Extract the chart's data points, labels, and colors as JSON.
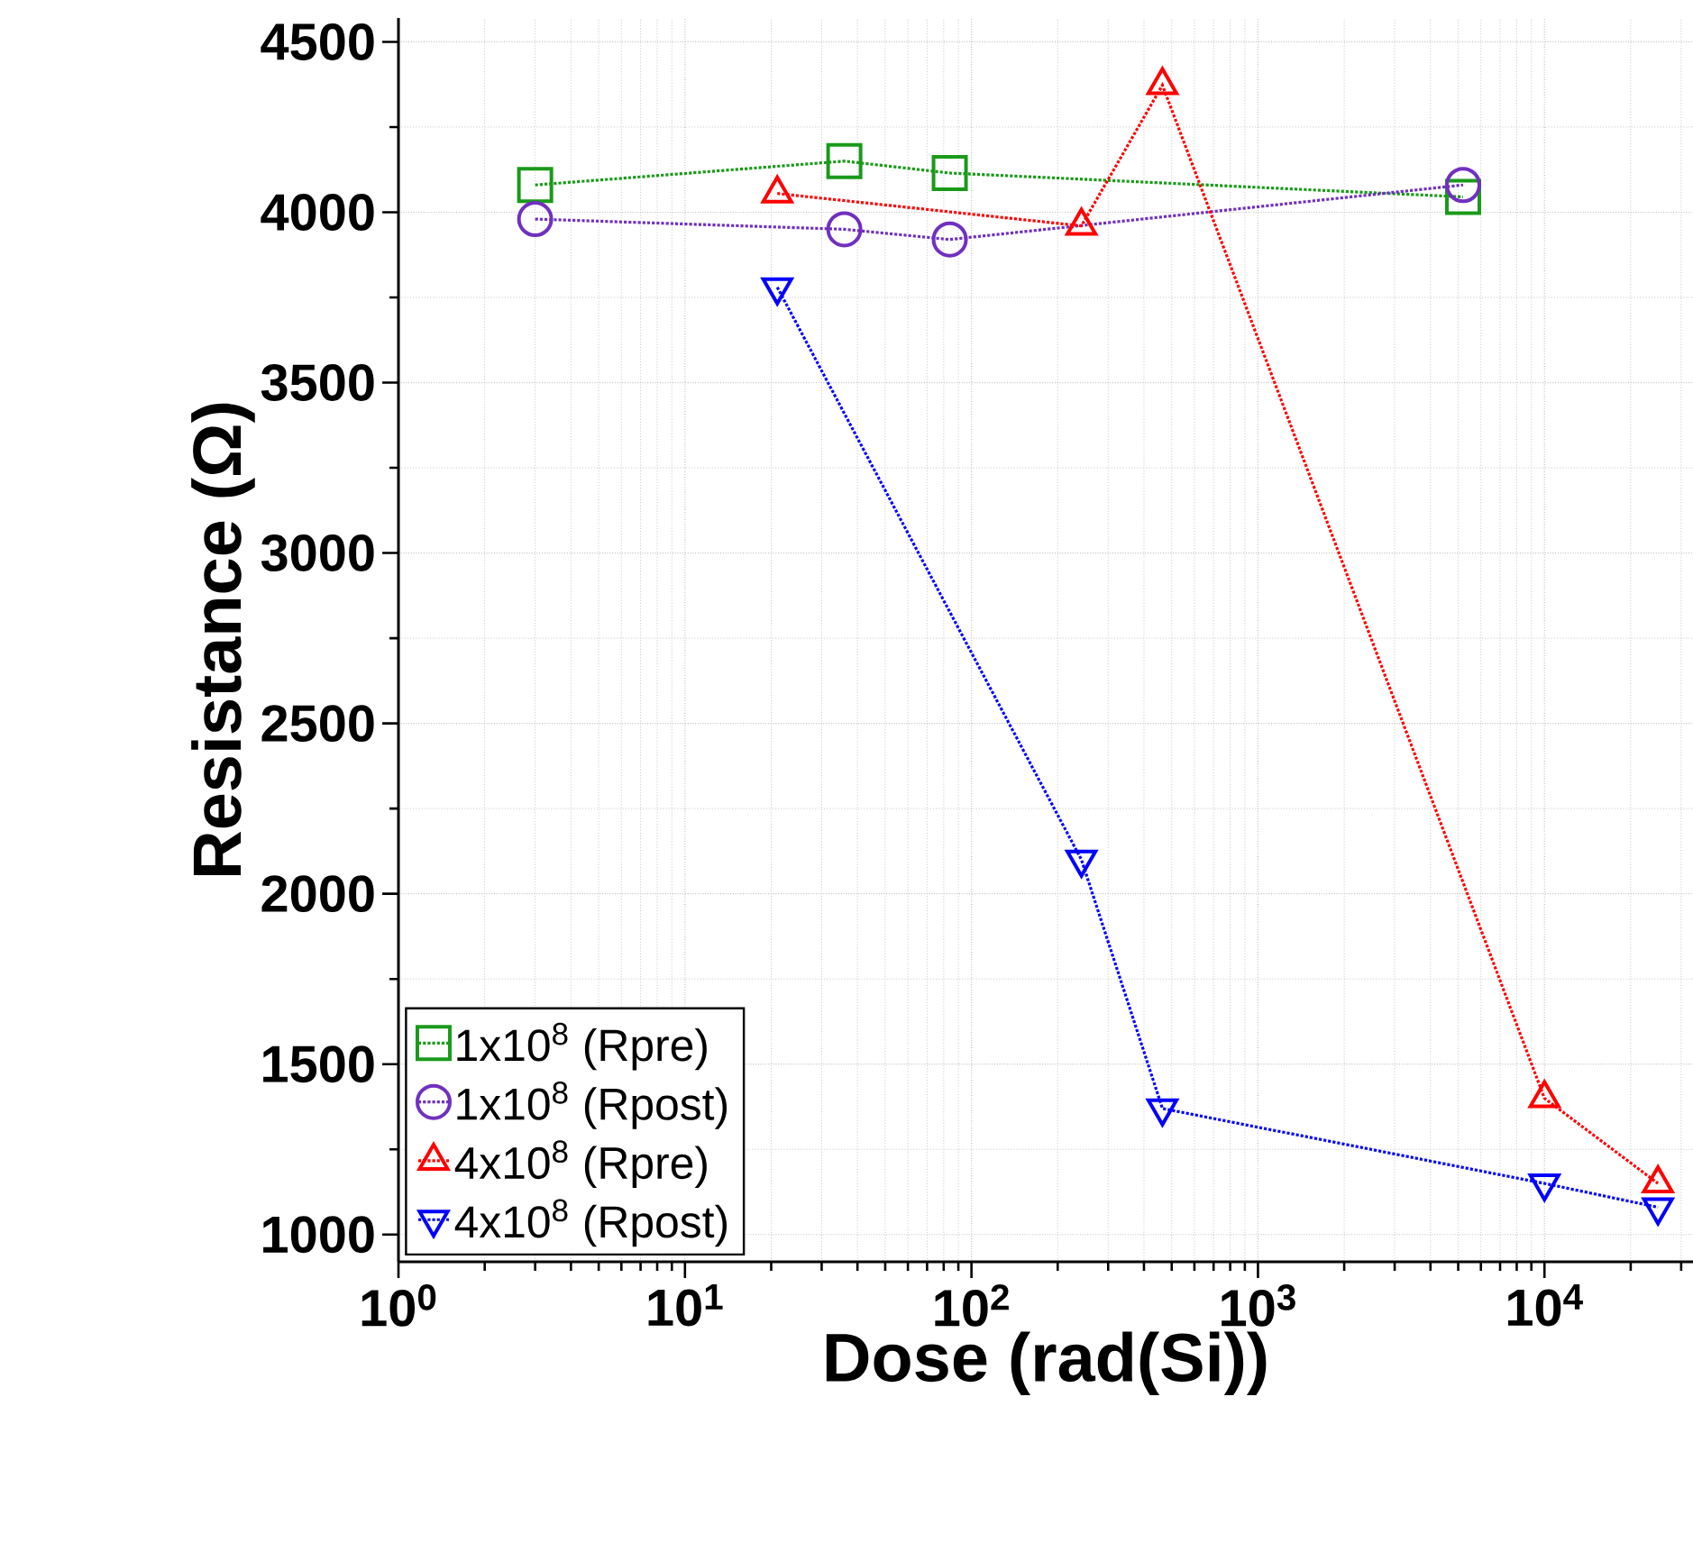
{
  "chart_data": {
    "type": "line",
    "xlabel": "Dose (rad(Si))",
    "ylabel": "Resistance (Ω)",
    "log": "x",
    "grid": true,
    "legend": "bottom left",
    "line_style": "dotted",
    "xlim": [
      1,
      33000
    ],
    "ylim": [
      920,
      4570
    ],
    "xticks": [
      {
        "value": 1,
        "label": "10$^{0}$"
      },
      {
        "value": 10,
        "label": "10$^{1}$"
      },
      {
        "value": 100,
        "label": "10$^{2}$"
      },
      {
        "value": 1000,
        "label": "10$^{3}$"
      },
      {
        "value": 10000,
        "label": "10$^{4}$"
      }
    ],
    "yticks": [
      1000,
      1500,
      2000,
      2500,
      3000,
      3500,
      4000,
      4500
    ],
    "series": [
      {
        "name": "1x10$^{8}$ (Rpre)",
        "color": "#1a9a1a",
        "marker": "square",
        "x": [
          3,
          36,
          84,
          5200
        ],
        "values": [
          4080,
          4150,
          4115,
          4045
        ]
      },
      {
        "name": "1x10$^{8}$ (Rpost)",
        "color": "#7030c0",
        "marker": "circle",
        "x": [
          3,
          36,
          84,
          5200
        ],
        "values": [
          3980,
          3950,
          3920,
          4080
        ]
      },
      {
        "name": "4x10$^{8}$ (Rpre)",
        "color": "#ff0000",
        "marker": "triangle",
        "x": [
          21,
          242,
          464,
          10000,
          24900
        ],
        "values": [
          4055,
          3960,
          4373,
          1400,
          1150
        ]
      },
      {
        "name": "4x10$^{8}$ (Rpost)",
        "color": "#0000ff",
        "marker": "triangle-down",
        "x": [
          21,
          242,
          464,
          10000,
          24900
        ],
        "values": [
          3780,
          2100,
          1370,
          1150,
          1080
        ]
      }
    ]
  }
}
